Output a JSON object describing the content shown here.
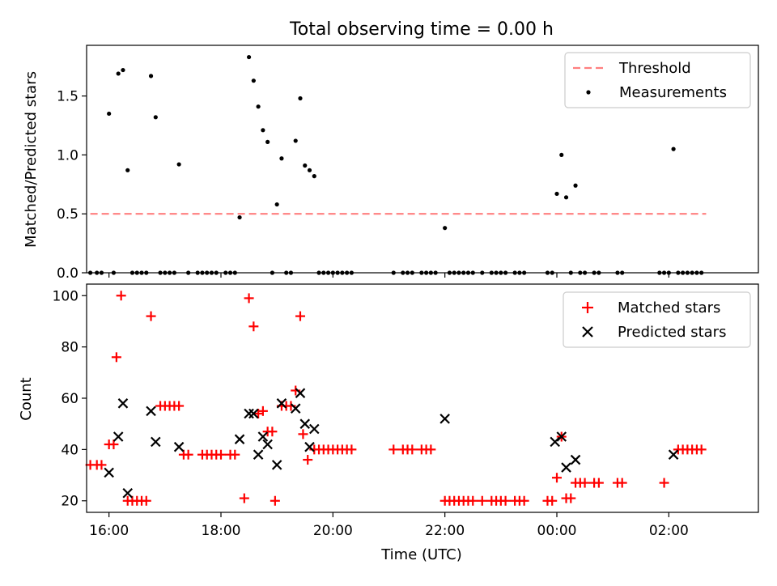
{
  "title": "Total observing time = 0.00 h",
  "chart_data": [
    {
      "type": "scatter",
      "ylabel": "Matched/Predicted stars",
      "ylim": [
        0,
        1.93
      ],
      "yticks": [
        0.0,
        0.5,
        1.0,
        1.5
      ],
      "ytick_labels": [
        "0.0",
        "0.5",
        "1.0",
        "1.5"
      ],
      "xlim": [
        "15:36",
        "03:36"
      ],
      "legend": {
        "placement": "top-right",
        "items": [
          "Threshold",
          "Measurements"
        ]
      },
      "threshold": {
        "name": "Threshold",
        "value": 0.5,
        "x_range": [
          "15:40",
          "02:40"
        ],
        "color": "#ff7f7f"
      },
      "measurements": {
        "name": "Measurements",
        "color": "#000000",
        "points": [
          [
            "15:40",
            0.0
          ],
          [
            "15:47",
            0.0
          ],
          [
            "15:52",
            0.0
          ],
          [
            "16:00",
            1.35
          ],
          [
            "16:05",
            0.0
          ],
          [
            "16:10",
            1.69
          ],
          [
            "16:15",
            1.72
          ],
          [
            "16:20",
            0.87
          ],
          [
            "16:25",
            0.0
          ],
          [
            "16:30",
            0.0
          ],
          [
            "16:35",
            0.0
          ],
          [
            "16:40",
            0.0
          ],
          [
            "16:45",
            1.67
          ],
          [
            "16:50",
            1.32
          ],
          [
            "16:55",
            0.0
          ],
          [
            "17:00",
            0.0
          ],
          [
            "17:05",
            0.0
          ],
          [
            "17:10",
            0.0
          ],
          [
            "17:15",
            0.92
          ],
          [
            "17:25",
            0.0
          ],
          [
            "17:35",
            0.0
          ],
          [
            "17:40",
            0.0
          ],
          [
            "17:45",
            0.0
          ],
          [
            "17:50",
            0.0
          ],
          [
            "17:55",
            0.0
          ],
          [
            "18:05",
            0.0
          ],
          [
            "18:10",
            0.0
          ],
          [
            "18:15",
            0.0
          ],
          [
            "18:20",
            0.47
          ],
          [
            "18:30",
            1.83
          ],
          [
            "18:35",
            1.63
          ],
          [
            "18:40",
            1.41
          ],
          [
            "18:45",
            1.21
          ],
          [
            "18:50",
            1.11
          ],
          [
            "18:55",
            0.0
          ],
          [
            "19:00",
            0.58
          ],
          [
            "19:05",
            0.97
          ],
          [
            "19:10",
            0.0
          ],
          [
            "19:15",
            0.0
          ],
          [
            "19:20",
            1.12
          ],
          [
            "19:25",
            1.48
          ],
          [
            "19:30",
            0.91
          ],
          [
            "19:35",
            0.87
          ],
          [
            "19:40",
            0.82
          ],
          [
            "19:45",
            0.0
          ],
          [
            "19:50",
            0.0
          ],
          [
            "19:55",
            0.0
          ],
          [
            "20:00",
            0.0
          ],
          [
            "20:05",
            0.0
          ],
          [
            "20:10",
            0.0
          ],
          [
            "20:15",
            0.0
          ],
          [
            "20:20",
            0.0
          ],
          [
            "21:05",
            0.0
          ],
          [
            "21:15",
            0.0
          ],
          [
            "21:20",
            0.0
          ],
          [
            "21:25",
            0.0
          ],
          [
            "21:35",
            0.0
          ],
          [
            "21:40",
            0.0
          ],
          [
            "21:45",
            0.0
          ],
          [
            "21:50",
            0.0
          ],
          [
            "22:00",
            0.38
          ],
          [
            "22:05",
            0.0
          ],
          [
            "22:10",
            0.0
          ],
          [
            "22:15",
            0.0
          ],
          [
            "22:20",
            0.0
          ],
          [
            "22:25",
            0.0
          ],
          [
            "22:30",
            0.0
          ],
          [
            "22:40",
            0.0
          ],
          [
            "22:50",
            0.0
          ],
          [
            "22:55",
            0.0
          ],
          [
            "23:00",
            0.0
          ],
          [
            "23:05",
            0.0
          ],
          [
            "23:15",
            0.0
          ],
          [
            "23:20",
            0.0
          ],
          [
            "23:25",
            0.0
          ],
          [
            "23:50",
            0.0
          ],
          [
            "23:55",
            0.0
          ],
          [
            "00:00",
            0.67
          ],
          [
            "00:05",
            1.0
          ],
          [
            "00:10",
            0.64
          ],
          [
            "00:15",
            0.0
          ],
          [
            "00:20",
            0.74
          ],
          [
            "00:25",
            0.0
          ],
          [
            "00:30",
            0.0
          ],
          [
            "00:40",
            0.0
          ],
          [
            "00:45",
            0.0
          ],
          [
            "01:05",
            0.0
          ],
          [
            "01:10",
            0.0
          ],
          [
            "01:50",
            0.0
          ],
          [
            "01:55",
            0.0
          ],
          [
            "02:00",
            0.0
          ],
          [
            "02:05",
            1.05
          ],
          [
            "02:10",
            0.0
          ],
          [
            "02:15",
            0.0
          ],
          [
            "02:20",
            0.0
          ],
          [
            "02:25",
            0.0
          ],
          [
            "02:30",
            0.0
          ],
          [
            "02:35",
            0.0
          ]
        ]
      }
    },
    {
      "type": "scatter",
      "xlabel": "Time (UTC)",
      "ylabel": "Count",
      "ylim": [
        15.5,
        104.5
      ],
      "yticks": [
        20,
        40,
        60,
        80,
        100
      ],
      "ytick_labels": [
        "20",
        "40",
        "60",
        "80",
        "100"
      ],
      "xlim": [
        "15:36",
        "03:36"
      ],
      "xticks": [
        "16:00",
        "18:00",
        "20:00",
        "22:00",
        "00:00",
        "02:00"
      ],
      "xtick_labels": [
        "16:00",
        "18:00",
        "20:00",
        "22:00",
        "00:00",
        "02:00"
      ],
      "legend": {
        "placement": "top-right",
        "items": [
          "Matched stars",
          "Predicted stars"
        ]
      },
      "series": [
        {
          "name": "Matched stars",
          "marker": "+",
          "color": "#ff0000",
          "points": [
            [
              "15:40",
              34
            ],
            [
              "15:47",
              34
            ],
            [
              "15:52",
              34
            ],
            [
              "16:00",
              42
            ],
            [
              "16:05",
              42
            ],
            [
              "16:08",
              76
            ],
            [
              "16:13",
              100
            ],
            [
              "16:20",
              20
            ],
            [
              "16:25",
              20
            ],
            [
              "16:30",
              20
            ],
            [
              "16:35",
              20
            ],
            [
              "16:40",
              20
            ],
            [
              "16:45",
              92
            ],
            [
              "16:55",
              57
            ],
            [
              "17:00",
              57
            ],
            [
              "17:05",
              57
            ],
            [
              "17:10",
              57
            ],
            [
              "17:15",
              57
            ],
            [
              "17:20",
              38
            ],
            [
              "17:25",
              38
            ],
            [
              "17:40",
              38
            ],
            [
              "17:45",
              38
            ],
            [
              "17:50",
              38
            ],
            [
              "17:55",
              38
            ],
            [
              "18:00",
              38
            ],
            [
              "18:10",
              38
            ],
            [
              "18:15",
              38
            ],
            [
              "18:25",
              21
            ],
            [
              "18:30",
              99
            ],
            [
              "18:35",
              88
            ],
            [
              "18:40",
              54
            ],
            [
              "18:45",
              55
            ],
            [
              "18:50",
              47
            ],
            [
              "18:55",
              47
            ],
            [
              "18:58",
              20
            ],
            [
              "19:05",
              57
            ],
            [
              "19:10",
              57
            ],
            [
              "19:15",
              57
            ],
            [
              "19:20",
              63
            ],
            [
              "19:25",
              92
            ],
            [
              "19:28",
              46
            ],
            [
              "19:33",
              36
            ],
            [
              "19:40",
              40
            ],
            [
              "19:45",
              40
            ],
            [
              "19:50",
              40
            ],
            [
              "19:55",
              40
            ],
            [
              "20:00",
              40
            ],
            [
              "20:05",
              40
            ],
            [
              "20:10",
              40
            ],
            [
              "20:15",
              40
            ],
            [
              "20:20",
              40
            ],
            [
              "21:05",
              40
            ],
            [
              "21:15",
              40
            ],
            [
              "21:20",
              40
            ],
            [
              "21:25",
              40
            ],
            [
              "21:35",
              40
            ],
            [
              "21:40",
              40
            ],
            [
              "21:45",
              40
            ],
            [
              "22:00",
              20
            ],
            [
              "22:05",
              20
            ],
            [
              "22:10",
              20
            ],
            [
              "22:15",
              20
            ],
            [
              "22:20",
              20
            ],
            [
              "22:25",
              20
            ],
            [
              "22:30",
              20
            ],
            [
              "22:40",
              20
            ],
            [
              "22:50",
              20
            ],
            [
              "22:55",
              20
            ],
            [
              "23:00",
              20
            ],
            [
              "23:05",
              20
            ],
            [
              "23:15",
              20
            ],
            [
              "23:20",
              20
            ],
            [
              "23:25",
              20
            ],
            [
              "23:50",
              20
            ],
            [
              "23:55",
              20
            ],
            [
              "00:00",
              29
            ],
            [
              "00:05",
              45
            ],
            [
              "00:10",
              21
            ],
            [
              "00:15",
              21
            ],
            [
              "00:20",
              27
            ],
            [
              "00:25",
              27
            ],
            [
              "00:30",
              27
            ],
            [
              "00:40",
              27
            ],
            [
              "00:45",
              27
            ],
            [
              "01:05",
              27
            ],
            [
              "01:10",
              27
            ],
            [
              "01:55",
              27
            ],
            [
              "02:10",
              40
            ],
            [
              "02:15",
              40
            ],
            [
              "02:20",
              40
            ],
            [
              "02:25",
              40
            ],
            [
              "02:30",
              40
            ],
            [
              "02:35",
              40
            ]
          ]
        },
        {
          "name": "Predicted stars",
          "marker": "x",
          "color": "#000000",
          "points": [
            [
              "16:00",
              31
            ],
            [
              "16:10",
              45
            ],
            [
              "16:15",
              58
            ],
            [
              "16:20",
              23
            ],
            [
              "16:45",
              55
            ],
            [
              "16:50",
              43
            ],
            [
              "17:15",
              41
            ],
            [
              "18:20",
              44
            ],
            [
              "18:30",
              54
            ],
            [
              "18:35",
              54
            ],
            [
              "18:40",
              38
            ],
            [
              "18:45",
              45
            ],
            [
              "18:50",
              42
            ],
            [
              "19:00",
              34
            ],
            [
              "19:05",
              58
            ],
            [
              "19:20",
              56
            ],
            [
              "19:25",
              62
            ],
            [
              "19:30",
              50
            ],
            [
              "19:35",
              41
            ],
            [
              "19:40",
              48
            ],
            [
              "22:00",
              52
            ],
            [
              "23:58",
              43
            ],
            [
              "00:05",
              45
            ],
            [
              "00:10",
              33
            ],
            [
              "00:20",
              36
            ],
            [
              "02:05",
              38
            ]
          ]
        }
      ]
    }
  ]
}
